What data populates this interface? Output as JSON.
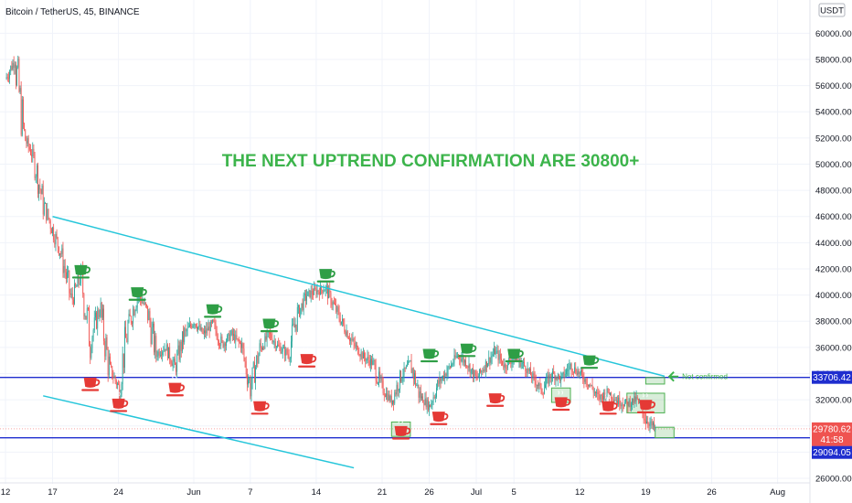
{
  "chart_data": {
    "type": "candlestick",
    "title": "Bitcoin / TetherUS, 45, BINANCE",
    "headline": "THE NEXT UPTREND CONFIRMATION ARE 30800+",
    "currency": "USDT",
    "ylim": [
      26000,
      61000
    ],
    "y_ticks": [
      "60000.00",
      "58000.00",
      "56000.00",
      "54000.00",
      "52000.00",
      "50000.00",
      "48000.00",
      "46000.00",
      "44000.00",
      "42000.00",
      "40000.00",
      "38000.00",
      "36000.00",
      "34000.00",
      "32000.00",
      "30000.00",
      "28000.00",
      "26000.00"
    ],
    "y_tick_values": [
      60000,
      58000,
      56000,
      54000,
      52000,
      50000,
      48000,
      46000,
      44000,
      42000,
      40000,
      38000,
      36000,
      34000,
      32000,
      30000,
      28000,
      26000
    ],
    "x_ticks": [
      "12",
      "17",
      "24",
      "Jun",
      "7",
      "14",
      "21",
      "26",
      "Jul",
      "5",
      "12",
      "19",
      "26",
      "Aug"
    ],
    "x_tick_days": [
      0,
      5,
      12,
      20,
      26,
      33,
      40,
      45,
      50,
      54,
      61,
      68,
      75,
      82
    ],
    "price_path": [
      [
        0,
        56500
      ],
      [
        1,
        58000
      ],
      [
        2,
        52000
      ],
      [
        3,
        50500
      ],
      [
        4,
        47000
      ],
      [
        5,
        45000
      ],
      [
        6,
        43000
      ],
      [
        7,
        39500
      ],
      [
        8,
        41500
      ],
      [
        9,
        36500
      ],
      [
        10,
        39000
      ],
      [
        11,
        34500
      ],
      [
        12,
        33000
      ],
      [
        13,
        37500
      ],
      [
        14,
        40000
      ],
      [
        15,
        39000
      ],
      [
        16,
        35500
      ],
      [
        17,
        36000
      ],
      [
        18,
        34500
      ],
      [
        19,
        37000
      ],
      [
        20,
        38000
      ],
      [
        21,
        37000
      ],
      [
        22,
        37800
      ],
      [
        23,
        36200
      ],
      [
        24,
        37000
      ],
      [
        25,
        36200
      ],
      [
        26,
        33000
      ],
      [
        27,
        35800
      ],
      [
        28,
        37000
      ],
      [
        29,
        36000
      ],
      [
        30,
        35500
      ],
      [
        31,
        38500
      ],
      [
        32,
        40000
      ],
      [
        33,
        40300
      ],
      [
        34,
        40500
      ],
      [
        35,
        39000
      ],
      [
        36,
        37500
      ],
      [
        37,
        36200
      ],
      [
        38,
        35300
      ],
      [
        39,
        34800
      ],
      [
        40,
        32800
      ],
      [
        41,
        31900
      ],
      [
        42,
        33800
      ],
      [
        43,
        34800
      ],
      [
        44,
        32300
      ],
      [
        45,
        31500
      ],
      [
        46,
        33300
      ],
      [
        47,
        34300
      ],
      [
        48,
        35400
      ],
      [
        49,
        34800
      ],
      [
        50,
        33600
      ],
      [
        51,
        34700
      ],
      [
        52,
        35700
      ],
      [
        53,
        34600
      ],
      [
        54,
        35200
      ],
      [
        55,
        34700
      ],
      [
        56,
        33700
      ],
      [
        57,
        32700
      ],
      [
        58,
        34000
      ],
      [
        59,
        33600
      ],
      [
        60,
        34600
      ],
      [
        61,
        34000
      ],
      [
        62,
        33200
      ],
      [
        63,
        32100
      ],
      [
        64,
        32600
      ],
      [
        65,
        31900
      ],
      [
        66,
        31700
      ],
      [
        67,
        32000
      ],
      [
        68,
        30500
      ],
      [
        69,
        29780
      ]
    ],
    "support_line": {
      "label": "33706.42",
      "value": 33706.42
    },
    "current_price": {
      "label": "29780.62",
      "countdown": "41:58",
      "value": 29780.62
    },
    "lower_line": {
      "label": "29094.05",
      "value": 29094.05
    },
    "trendlines": [
      {
        "name": "upper-trendline",
        "from": [
          5,
          46000
        ],
        "to": [
          70,
          33800
        ]
      },
      {
        "name": "lower-trendline",
        "from": [
          4,
          32300
        ],
        "to": [
          37,
          26800
        ]
      }
    ],
    "annotations": {
      "not_confirmed": "Not confirmed",
      "green_cups": [
        [
          8,
          41800
        ],
        [
          14,
          40100
        ],
        [
          22,
          38800
        ],
        [
          28,
          37700
        ],
        [
          34,
          41500
        ],
        [
          45,
          35400
        ],
        [
          49,
          35800
        ],
        [
          54,
          35400
        ],
        [
          62,
          34900
        ]
      ],
      "red_cups": [
        [
          9,
          33200
        ],
        [
          12,
          31600
        ],
        [
          18,
          32800
        ],
        [
          27,
          31400
        ],
        [
          32,
          35000
        ],
        [
          42,
          29500
        ],
        [
          46,
          30600
        ],
        [
          52,
          32000
        ],
        [
          59,
          31700
        ],
        [
          64,
          31400
        ],
        [
          68,
          31500
        ]
      ],
      "green_boxes": [
        [
          [
            41,
            30300
          ],
          [
            43,
            29200
          ]
        ],
        [
          [
            58,
            32900
          ],
          [
            60,
            31800
          ]
        ],
        [
          [
            66,
            32500
          ],
          [
            70,
            31000
          ]
        ],
        [
          [
            68,
            33700
          ],
          [
            70,
            33200
          ]
        ],
        [
          [
            69,
            29900
          ],
          [
            71,
            29100
          ]
        ]
      ]
    }
  }
}
